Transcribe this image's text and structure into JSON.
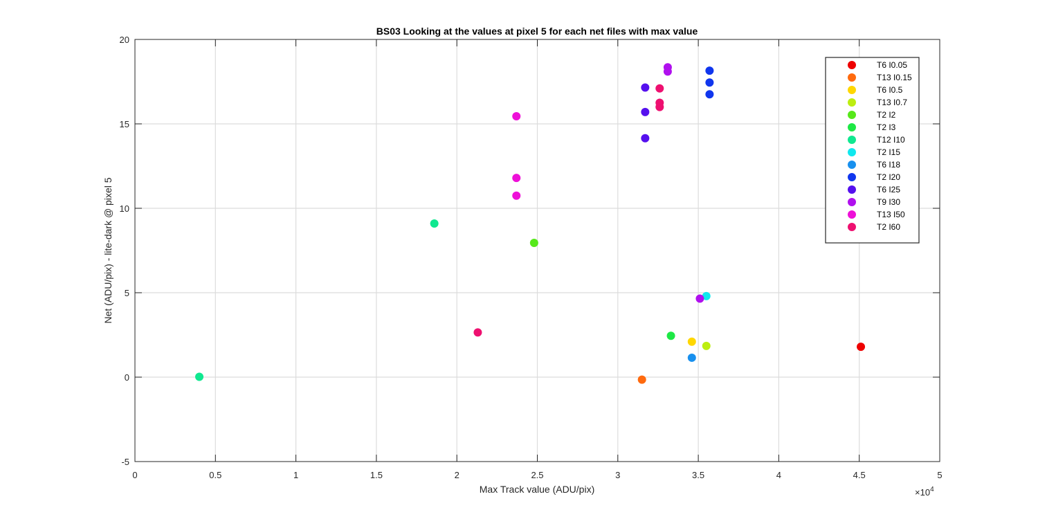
{
  "chart_data": {
    "type": "scatter",
    "title": "BS03  Looking at the values at pixel 5 for each net files with max value",
    "xlabel": "Max Track value (ADU/pix)",
    "ylabel": "Net (ADU/pix) - lite-dark @ pixel 5",
    "x_exponent_label": "×10",
    "x_exponent_power": "4",
    "xlim": [
      0,
      50000
    ],
    "ylim": [
      -5,
      20
    ],
    "x_ticks": [
      0,
      5000,
      10000,
      15000,
      20000,
      25000,
      30000,
      35000,
      40000,
      45000,
      50000
    ],
    "x_tick_labels": [
      "0",
      "0.5",
      "1",
      "1.5",
      "2",
      "2.5",
      "3",
      "3.5",
      "4",
      "4.5",
      "5"
    ],
    "y_ticks": [
      -5,
      0,
      5,
      10,
      15,
      20
    ],
    "y_tick_labels": [
      "-5",
      "0",
      "5",
      "10",
      "15",
      "20"
    ],
    "grid": true,
    "legend_position": "top-right",
    "series": [
      {
        "name": "T6 I0.05",
        "color": "#ee0000",
        "points": [
          [
            45100,
            1.8
          ]
        ]
      },
      {
        "name": "T13 I0.15",
        "color": "#ff6a0e",
        "points": [
          [
            31500,
            -0.15
          ]
        ]
      },
      {
        "name": "T6 I0.5",
        "color": "#ffd700",
        "points": [
          [
            34600,
            2.1
          ]
        ]
      },
      {
        "name": "T13 I0.7",
        "color": "#bdee10",
        "points": [
          [
            35500,
            1.85
          ]
        ]
      },
      {
        "name": "T2 I2",
        "color": "#56e81a",
        "points": [
          [
            24800,
            7.95
          ]
        ]
      },
      {
        "name": "T2 I3",
        "color": "#1de845",
        "points": [
          [
            33300,
            2.45
          ]
        ]
      },
      {
        "name": "T12 I10",
        "color": "#10e890",
        "points": [
          [
            18600,
            9.1
          ],
          [
            4000,
            0.02
          ]
        ]
      },
      {
        "name": "T2 I15",
        "color": "#10e8ee",
        "points": [
          [
            35500,
            4.8
          ]
        ]
      },
      {
        "name": "T6 I18",
        "color": "#1890ee",
        "points": [
          [
            34600,
            1.15
          ]
        ]
      },
      {
        "name": "T2 I20",
        "color": "#1036ee",
        "points": [
          [
            35700,
            18.15
          ],
          [
            35700,
            17.45
          ],
          [
            35700,
            16.75
          ]
        ]
      },
      {
        "name": "T6 I25",
        "color": "#5510ee",
        "points": [
          [
            31700,
            17.15
          ],
          [
            31700,
            15.7
          ],
          [
            31700,
            14.15
          ]
        ]
      },
      {
        "name": "T9 I30",
        "color": "#b010ee",
        "points": [
          [
            33100,
            18.35
          ],
          [
            33100,
            18.1
          ],
          [
            35100,
            4.65
          ]
        ]
      },
      {
        "name": "T13 I50",
        "color": "#ee10d8",
        "points": [
          [
            23700,
            15.45
          ],
          [
            23700,
            11.8
          ],
          [
            23700,
            10.75
          ]
        ]
      },
      {
        "name": "T2 I60",
        "color": "#ee1070",
        "points": [
          [
            32600,
            17.1
          ],
          [
            32600,
            16.25
          ],
          [
            32600,
            16.0
          ],
          [
            21300,
            2.65
          ]
        ]
      }
    ]
  }
}
